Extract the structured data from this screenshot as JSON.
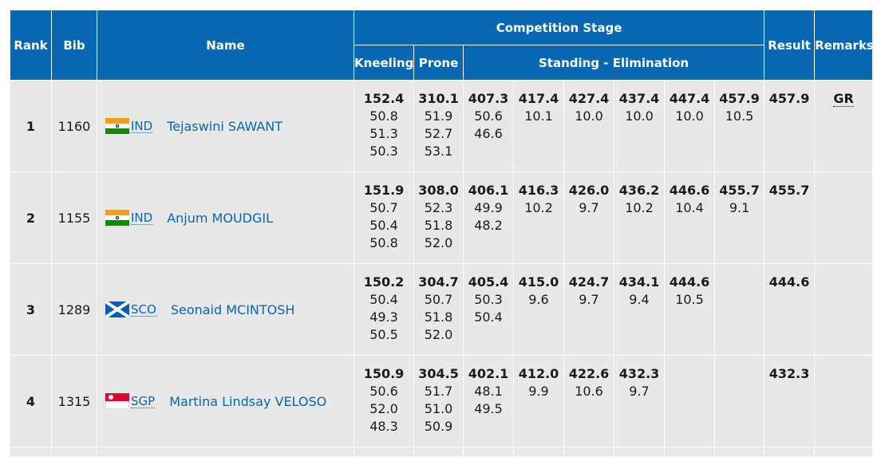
{
  "header": {
    "rank": "Rank",
    "bib": "Bib",
    "name": "Name",
    "competition_stage": "Competition Stage",
    "kneeling": "Kneeling",
    "prone": "Prone",
    "standing": "Standing - Elimination",
    "result": "Result",
    "remarks": "Remarks"
  },
  "rows": [
    {
      "rank": "1",
      "bib": "1160",
      "noc": "IND",
      "flag": "india-flag-icon",
      "name": "Tejaswini SAWANT",
      "kneeling": [
        "152.4",
        "50.8",
        "51.3",
        "50.3"
      ],
      "prone": [
        "310.1",
        "51.9",
        "52.7",
        "53.1"
      ],
      "standing": [
        [
          "407.3",
          "50.6",
          "46.6"
        ],
        [
          "417.4",
          "10.1"
        ],
        [
          "427.4",
          "10.0"
        ],
        [
          "437.4",
          "10.0"
        ],
        [
          "447.4",
          "10.0"
        ],
        [
          "457.9",
          "10.5"
        ]
      ],
      "result": "457.9",
      "remark": "GR"
    },
    {
      "rank": "2",
      "bib": "1155",
      "noc": "IND",
      "flag": "india-flag-icon",
      "name": "Anjum MOUDGIL",
      "kneeling": [
        "151.9",
        "50.7",
        "50.4",
        "50.8"
      ],
      "prone": [
        "308.0",
        "52.3",
        "51.8",
        "52.0"
      ],
      "standing": [
        [
          "406.1",
          "49.9",
          "48.2"
        ],
        [
          "416.3",
          "10.2"
        ],
        [
          "426.0",
          "9.7"
        ],
        [
          "436.2",
          "10.2"
        ],
        [
          "446.6",
          "10.4"
        ],
        [
          "455.7",
          "9.1"
        ]
      ],
      "result": "455.7",
      "remark": ""
    },
    {
      "rank": "3",
      "bib": "1289",
      "noc": "SCO",
      "flag": "scotland-flag-icon",
      "name": "Seonaid MCINTOSH",
      "kneeling": [
        "150.2",
        "50.4",
        "49.3",
        "50.5"
      ],
      "prone": [
        "304.7",
        "50.7",
        "51.8",
        "52.0"
      ],
      "standing": [
        [
          "405.4",
          "50.3",
          "50.4"
        ],
        [
          "415.0",
          "9.6"
        ],
        [
          "424.7",
          "9.7"
        ],
        [
          "434.1",
          "9.4"
        ],
        [
          "444.6",
          "10.5"
        ],
        []
      ],
      "result": "444.6",
      "remark": ""
    },
    {
      "rank": "4",
      "bib": "1315",
      "noc": "SGP",
      "flag": "singapore-flag-icon",
      "name": "Martina Lindsay VELOSO",
      "kneeling": [
        "150.9",
        "50.6",
        "52.0",
        "48.3"
      ],
      "prone": [
        "304.5",
        "51.7",
        "51.0",
        "50.9"
      ],
      "standing": [
        [
          "402.1",
          "48.1",
          "49.5"
        ],
        [
          "412.0",
          "9.9"
        ],
        [
          "422.6",
          "10.6"
        ],
        [
          "432.3",
          "9.7"
        ],
        [],
        []
      ],
      "result": "432.3",
      "remark": ""
    }
  ]
}
